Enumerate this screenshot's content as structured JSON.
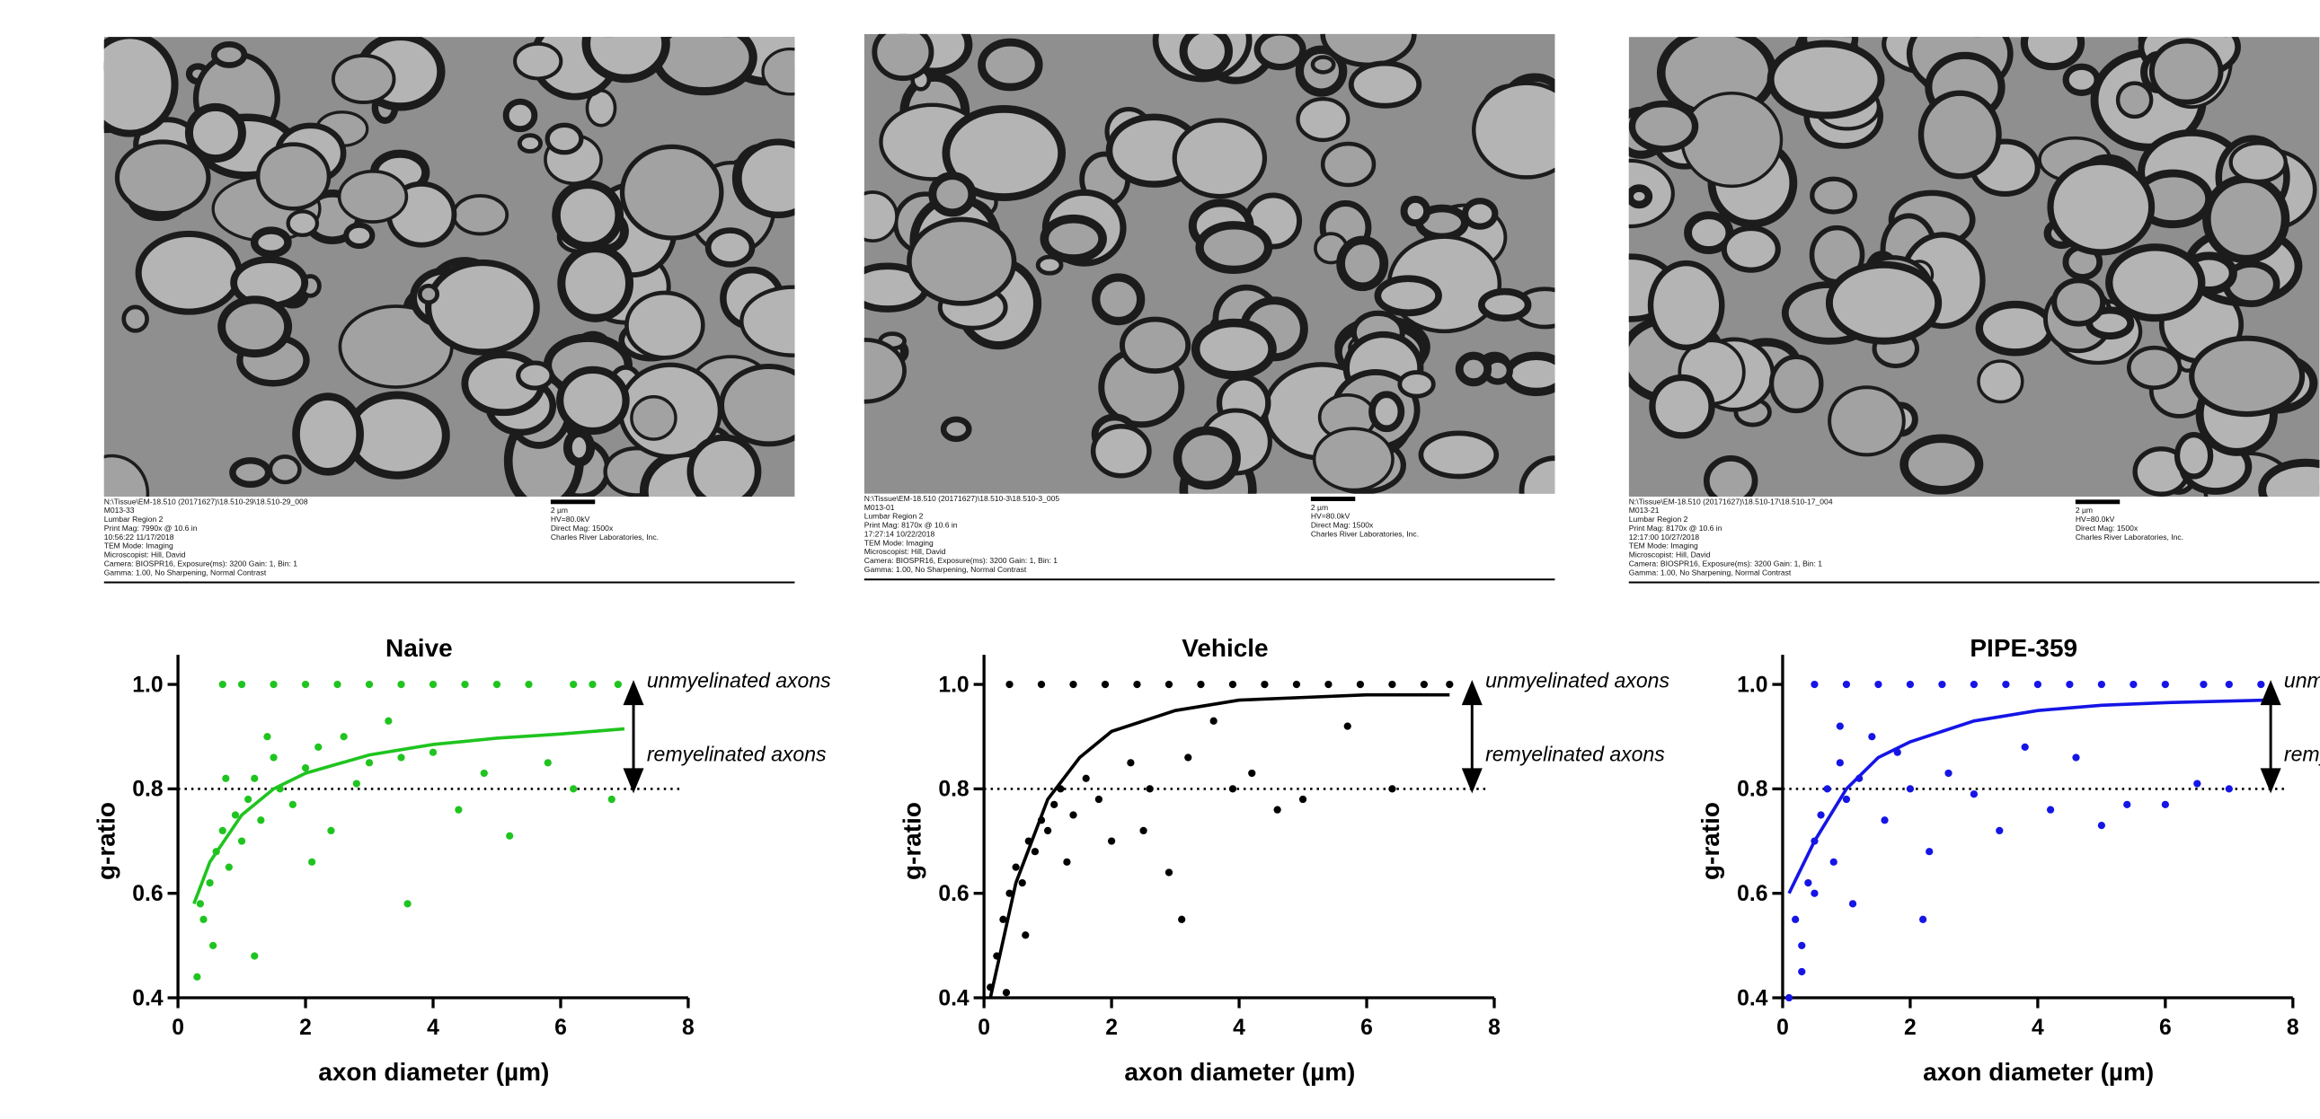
{
  "images": [
    {
      "caption_left": [
        "N:\\Tissue\\EM-18.510 (20171627)\\18.510-29\\18.510-29_008",
        "M013-33",
        "Lumbar Region 2",
        "Print Mag: 7990x @ 10.6 in",
        "10:56:22 11/17/2018",
        "TEM Mode: Imaging",
        "Microscopist: Hill, David",
        "Camera: BIOSPR16, Exposure(ms): 3200 Gain: 1, Bin: 1",
        "Gamma: 1.00, No Sharpening, Normal Contrast"
      ],
      "caption_right": [
        "2 µm",
        "HV=80.0kV",
        "Direct Mag: 1500x",
        "Charles River Laboratories, Inc."
      ]
    },
    {
      "caption_left": [
        "N:\\Tissue\\EM-18.510 (20171627)\\18.510-3\\18.510-3_005",
        "M013-01",
        "Lumbar Region 2",
        "Print Mag: 8170x @ 10.6 in",
        "17:27:14 10/22/2018",
        "TEM Mode: Imaging",
        "Microscopist: Hill, David",
        "Camera: BIOSPR16, Exposure(ms): 3200 Gain: 1, Bin: 1",
        "Gamma: 1.00, No Sharpening, Normal Contrast"
      ],
      "caption_right": [
        "2 µm",
        "HV=80.0kV",
        "Direct Mag: 1500x",
        "Charles River Laboratories, Inc."
      ]
    },
    {
      "caption_left": [
        "N:\\Tissue\\EM-18.510 (20171627)\\18.510-17\\18.510-17_004",
        "M013-21",
        "Lumbar Region 2",
        "Print Mag: 8170x @ 10.6 in",
        "12:17:00 10/27/2018",
        "TEM Mode: Imaging",
        "Microscopist: Hill, David",
        "Camera: BIOSPR16, Exposure(ms): 3200 Gain: 1, Bin: 1",
        "Gamma: 1.00, No Sharpening, Normal Contrast"
      ],
      "caption_right": [
        "2 µm",
        "HV=80.0kV",
        "Direct Mag: 1500x",
        "Charles River Laboratories, Inc."
      ]
    }
  ],
  "chart_data": [
    {
      "type": "scatter",
      "title": "Naive",
      "xlabel": "axon diameter (µm)",
      "ylabel": "g-ratio",
      "xlim": [
        0,
        8
      ],
      "ylim": [
        0.4,
        1.0
      ],
      "xticks": [
        0,
        2,
        4,
        6,
        8
      ],
      "yticks": [
        0.4,
        0.6,
        0.8,
        {
          "value": 1,
          "label": "1.0"
        }
      ],
      "reference_line": 0.8,
      "annotations": [
        "unmyelinated axons",
        "remyelinated axons"
      ],
      "series": [
        {
          "color": "#1fc41f",
          "x": [
            0.3,
            0.4,
            0.5,
            0.6,
            0.7,
            0.8,
            0.9,
            1.0,
            1.1,
            1.2,
            1.3,
            1.5,
            1.6,
            1.8,
            2.0,
            2.2,
            2.4,
            2.6,
            2.8,
            3.0,
            3.3,
            3.6,
            4.0,
            4.4,
            4.8,
            5.2,
            5.8,
            6.2,
            6.8,
            0.35,
            0.55,
            0.75,
            1.2,
            1.4,
            2.1,
            3.5,
            0.7,
            1.0,
            1.5,
            2.0,
            2.5,
            3.0,
            3.5,
            4.0,
            4.5,
            5.0,
            5.5,
            6.2,
            6.5,
            6.9
          ],
          "values": [
            0.44,
            0.55,
            0.62,
            0.68,
            0.72,
            0.65,
            0.75,
            0.7,
            0.78,
            0.82,
            0.74,
            0.86,
            0.8,
            0.77,
            0.84,
            0.88,
            0.72,
            0.9,
            0.81,
            0.85,
            0.93,
            0.58,
            0.87,
            0.76,
            0.83,
            0.71,
            0.85,
            0.8,
            0.78,
            0.58,
            0.5,
            0.82,
            0.48,
            0.9,
            0.66,
            0.86,
            1.0,
            1.0,
            1.0,
            1.0,
            1.0,
            1.0,
            1.0,
            1.0,
            1.0,
            1.0,
            1.0,
            1.0,
            1.0,
            1.0
          ]
        }
      ],
      "fit": {
        "color": "#1fc41f",
        "x": [
          0.25,
          0.5,
          1,
          1.5,
          2,
          3,
          4,
          5,
          6,
          7
        ],
        "values": [
          0.58,
          0.66,
          0.75,
          0.8,
          0.83,
          0.865,
          0.885,
          0.897,
          0.905,
          0.915
        ]
      }
    },
    {
      "type": "scatter",
      "title": "Vehicle",
      "xlabel": "axon diameter (µm)",
      "ylabel": "g-ratio",
      "xlim": [
        0,
        8
      ],
      "ylim": [
        0.4,
        1.0
      ],
      "xticks": [
        0,
        2,
        4,
        6,
        8
      ],
      "yticks": [
        0.4,
        0.6,
        0.8,
        {
          "value": 1,
          "label": "1.0"
        }
      ],
      "reference_line": 0.8,
      "annotations": [
        "unmyelinated axons",
        "remyelinated axons"
      ],
      "series": [
        {
          "color": "#000000",
          "x": [
            0.1,
            0.2,
            0.3,
            0.4,
            0.5,
            0.6,
            0.7,
            0.8,
            0.9,
            1.0,
            1.1,
            1.2,
            1.4,
            1.6,
            1.8,
            2.0,
            2.3,
            2.6,
            2.9,
            3.2,
            3.6,
            3.9,
            4.2,
            4.6,
            5.0,
            5.7,
            6.4,
            0.35,
            0.65,
            1.3,
            2.5,
            3.1,
            0.4,
            0.9,
            1.4,
            1.9,
            2.4,
            2.9,
            3.4,
            3.9,
            4.4,
            4.9,
            5.4,
            5.9,
            6.4,
            6.9,
            7.3
          ],
          "values": [
            0.42,
            0.48,
            0.55,
            0.6,
            0.65,
            0.62,
            0.7,
            0.68,
            0.74,
            0.72,
            0.77,
            0.8,
            0.75,
            0.82,
            0.78,
            0.7,
            0.85,
            0.8,
            0.64,
            0.86,
            0.93,
            0.8,
            0.83,
            0.76,
            0.78,
            0.92,
            0.8,
            0.41,
            0.52,
            0.66,
            0.72,
            0.55,
            1.0,
            1.0,
            1.0,
            1.0,
            1.0,
            1.0,
            1.0,
            1.0,
            1.0,
            1.0,
            1.0,
            1.0,
            1.0,
            1.0,
            1.0
          ]
        }
      ],
      "fit": {
        "color": "#000000",
        "x": [
          0.1,
          0.5,
          1,
          1.5,
          2,
          3,
          4,
          5,
          6,
          7.3
        ],
        "values": [
          0.4,
          0.62,
          0.78,
          0.86,
          0.91,
          0.95,
          0.97,
          0.975,
          0.98,
          0.98
        ]
      }
    },
    {
      "type": "scatter",
      "title": "PIPE-359",
      "xlabel": "axon diameter (µm)",
      "ylabel": "g-ratio",
      "xlim": [
        0,
        8
      ],
      "ylim": [
        0.4,
        1.0
      ],
      "xticks": [
        0,
        2,
        4,
        6,
        8
      ],
      "yticks": [
        0.4,
        0.6,
        0.8,
        {
          "value": 1,
          "label": "1.0"
        }
      ],
      "reference_line": 0.8,
      "annotations": [
        "unmyelinated axons",
        "remyelinated axons"
      ],
      "series": [
        {
          "color": "#1515e6",
          "x": [
            0.1,
            0.2,
            0.3,
            0.4,
            0.5,
            0.6,
            0.7,
            0.8,
            0.9,
            1.0,
            1.2,
            1.4,
            1.6,
            1.8,
            2.0,
            2.3,
            2.6,
            3.0,
            3.4,
            3.8,
            4.2,
            4.6,
            5.0,
            5.4,
            6.0,
            6.5,
            7.0,
            0.3,
            0.5,
            0.9,
            1.1,
            2.2,
            0.5,
            1.0,
            1.5,
            2.0,
            2.5,
            3.0,
            3.5,
            4.0,
            4.5,
            5.0,
            5.5,
            6.0,
            6.6,
            7.0,
            7.5
          ],
          "values": [
            0.4,
            0.55,
            0.45,
            0.62,
            0.7,
            0.75,
            0.8,
            0.66,
            0.85,
            0.78,
            0.82,
            0.9,
            0.74,
            0.87,
            0.8,
            0.68,
            0.83,
            0.79,
            0.72,
            0.88,
            0.76,
            0.86,
            0.73,
            0.77,
            0.77,
            0.81,
            0.8,
            0.5,
            0.6,
            0.92,
            0.58,
            0.55,
            1.0,
            1.0,
            1.0,
            1.0,
            1.0,
            1.0,
            1.0,
            1.0,
            1.0,
            1.0,
            1.0,
            1.0,
            1.0,
            1.0,
            1.0
          ]
        }
      ],
      "fit": {
        "color": "#1515e6",
        "x": [
          0.1,
          0.5,
          1,
          1.5,
          2,
          3,
          4,
          5,
          6,
          7.6
        ],
        "values": [
          0.6,
          0.7,
          0.8,
          0.86,
          0.89,
          0.93,
          0.95,
          0.96,
          0.965,
          0.97
        ]
      }
    }
  ]
}
